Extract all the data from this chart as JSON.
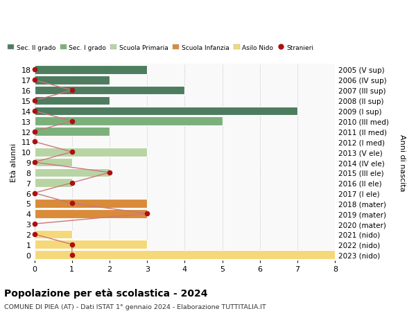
{
  "ages": [
    18,
    17,
    16,
    15,
    14,
    13,
    12,
    11,
    10,
    9,
    8,
    7,
    6,
    5,
    4,
    3,
    2,
    1,
    0
  ],
  "years": [
    "2005 (V sup)",
    "2006 (IV sup)",
    "2007 (III sup)",
    "2008 (II sup)",
    "2009 (I sup)",
    "2010 (III med)",
    "2011 (II med)",
    "2012 (I med)",
    "2013 (V ele)",
    "2014 (IV ele)",
    "2015 (III ele)",
    "2016 (II ele)",
    "2017 (I ele)",
    "2018 (mater)",
    "2019 (mater)",
    "2020 (mater)",
    "2021 (nido)",
    "2022 (nido)",
    "2023 (nido)"
  ],
  "bar_values": [
    3,
    2,
    4,
    2,
    7,
    5,
    2,
    0,
    3,
    1,
    2,
    1,
    0,
    3,
    3,
    0,
    1,
    3,
    8
  ],
  "bar_colors": [
    "#4d7c5f",
    "#4d7c5f",
    "#4d7c5f",
    "#4d7c5f",
    "#4d7c5f",
    "#7bb07b",
    "#7bb07b",
    "#7bb07b",
    "#b8d4a4",
    "#b8d4a4",
    "#b8d4a4",
    "#b8d4a4",
    "#b8d4a4",
    "#d98b3a",
    "#d98b3a",
    "#d98b3a",
    "#f5d87a",
    "#f5d87a",
    "#f5d87a"
  ],
  "stranieri_values": [
    0,
    0,
    1,
    0,
    0,
    1,
    0,
    0,
    1,
    0,
    2,
    1,
    0,
    1,
    3,
    0,
    0,
    1,
    1
  ],
  "legend_labels": [
    "Sec. II grado",
    "Sec. I grado",
    "Scuola Primaria",
    "Scuola Infanzia",
    "Asilo Nido",
    "Stranieri"
  ],
  "legend_colors": [
    "#4d7c5f",
    "#7bb07b",
    "#b8d4a4",
    "#d98b3a",
    "#f5d87a",
    "#cc2222"
  ],
  "title": "Popolazione per età scolastica - 2024",
  "subtitle": "COMUNE DI PIEA (AT) - Dati ISTAT 1° gennaio 2024 - Elaborazione TUTTITALIA.IT",
  "ylabel_left": "Età alunni",
  "ylabel_right": "Anni di nascita",
  "xlim": [
    0,
    8
  ],
  "ylim_min": -0.55,
  "ylim_max": 18.55,
  "background_color": "#ffffff",
  "plot_bg_color": "#f9f9f9",
  "grid_color": "#cccccc",
  "bar_edge_color": "#ffffff",
  "stranieri_color": "#aa1111",
  "stranieri_line_color": "#cc7777",
  "bar_height": 0.85
}
